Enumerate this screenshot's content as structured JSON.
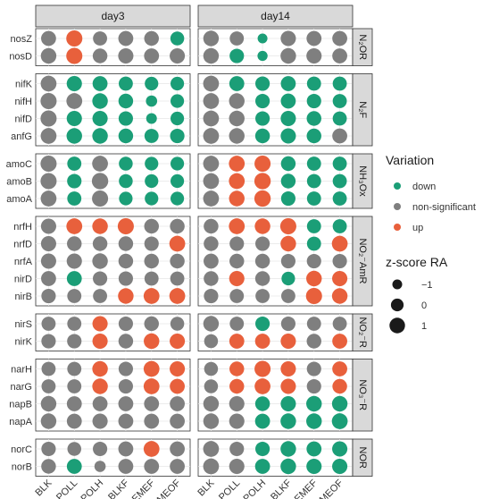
{
  "chart_data": {
    "type": "scatter",
    "panels": [
      "day3",
      "day14"
    ],
    "x_categories": [
      "BLK",
      "POLL",
      "POLH",
      "BLKF",
      "EMEF",
      "EMEOF"
    ],
    "groups": [
      {
        "label": "N₂OR",
        "genes": [
          "nosZ",
          "nosD"
        ]
      },
      {
        "label": "N₂F",
        "genes": [
          "nifK",
          "nifH",
          "nifD",
          "anfG"
        ]
      },
      {
        "label": "NH₃Ox",
        "genes": [
          "amoC",
          "amoB",
          "amoA"
        ]
      },
      {
        "label": "NO₂⁻AmR",
        "genes": [
          "nrfH",
          "nrfD",
          "nrfA",
          "nirD",
          "nirB"
        ]
      },
      {
        "label": "NO₂⁻R",
        "genes": [
          "nirS",
          "nirK"
        ]
      },
      {
        "label": "NO₃⁻R",
        "genes": [
          "narH",
          "narG",
          "napB",
          "napA"
        ]
      },
      {
        "label": "NOR",
        "genes": [
          "norC",
          "norB"
        ]
      }
    ],
    "colors": {
      "down": "#1b9e77",
      "non-significant": "#7f7f7f",
      "up": "#e8603c"
    },
    "legend_variation": {
      "title": "Variation",
      "items": [
        {
          "key": "down",
          "label": "down"
        },
        {
          "key": "non-significant",
          "label": "non-significant"
        },
        {
          "key": "up",
          "label": "up"
        }
      ]
    },
    "legend_size": {
      "title": "z-score RA",
      "items": [
        {
          "value": -1,
          "label": "−1"
        },
        {
          "value": 0,
          "label": "0"
        },
        {
          "value": 1,
          "label": "1"
        }
      ]
    },
    "values": {
      "day3": {
        "nosZ": [
          [
            0.8,
            "n"
          ],
          [
            1.2,
            "u"
          ],
          [
            0.5,
            "n"
          ],
          [
            0.8,
            "n"
          ],
          [
            0.7,
            "n"
          ],
          [
            0.4,
            "d"
          ]
        ],
        "nosD": [
          [
            1.0,
            "n"
          ],
          [
            1.2,
            "u"
          ],
          [
            0.7,
            "n"
          ],
          [
            0.9,
            "n"
          ],
          [
            0.8,
            "n"
          ],
          [
            0.9,
            "n"
          ]
        ],
        "nifK": [
          [
            1.1,
            "n"
          ],
          [
            0.9,
            "d"
          ],
          [
            0.8,
            "d"
          ],
          [
            0.5,
            "d"
          ],
          [
            0.3,
            "d"
          ],
          [
            0.3,
            "d"
          ]
        ],
        "nifH": [
          [
            1.2,
            "n"
          ],
          [
            1.1,
            "n"
          ],
          [
            1.0,
            "d"
          ],
          [
            0.7,
            "d"
          ],
          [
            -0.5,
            "d"
          ],
          [
            0.3,
            "d"
          ]
        ],
        "nifD": [
          [
            1.2,
            "n"
          ],
          [
            0.9,
            "d"
          ],
          [
            0.9,
            "d"
          ],
          [
            0.6,
            "d"
          ],
          [
            -0.7,
            "d"
          ],
          [
            0.3,
            "d"
          ]
        ],
        "anfG": [
          [
            1.1,
            "n"
          ],
          [
            1.0,
            "d"
          ],
          [
            1.0,
            "d"
          ],
          [
            0.7,
            "d"
          ],
          [
            0.5,
            "d"
          ],
          [
            0.6,
            "d"
          ]
        ],
        "amoC": [
          [
            1.2,
            "n"
          ],
          [
            0.5,
            "d"
          ],
          [
            1.1,
            "n"
          ],
          [
            0.4,
            "d"
          ],
          [
            0.3,
            "d"
          ],
          [
            0.3,
            "d"
          ]
        ],
        "amoB": [
          [
            1.2,
            "n"
          ],
          [
            0.6,
            "d"
          ],
          [
            1.3,
            "n"
          ],
          [
            0.4,
            "d"
          ],
          [
            0.3,
            "d"
          ],
          [
            0.3,
            "d"
          ]
        ],
        "amoA": [
          [
            1.1,
            "n"
          ],
          [
            0.5,
            "d"
          ],
          [
            1.2,
            "n"
          ],
          [
            0.3,
            "d"
          ],
          [
            0.3,
            "d"
          ],
          [
            0.3,
            "d"
          ]
        ],
        "nrfH": [
          [
            0.9,
            "n"
          ],
          [
            1.1,
            "u"
          ],
          [
            1.0,
            "u"
          ],
          [
            1.2,
            "u"
          ],
          [
            0.7,
            "n"
          ],
          [
            0.7,
            "n"
          ]
        ],
        "nrfD": [
          [
            0.9,
            "n"
          ],
          [
            0.7,
            "n"
          ],
          [
            0.7,
            "n"
          ],
          [
            0.7,
            "n"
          ],
          [
            0.6,
            "n"
          ],
          [
            1.1,
            "u"
          ]
        ],
        "nrfA": [
          [
            0.9,
            "n"
          ],
          [
            0.9,
            "n"
          ],
          [
            1.0,
            "n"
          ],
          [
            0.7,
            "n"
          ],
          [
            0.7,
            "n"
          ],
          [
            0.7,
            "n"
          ]
        ],
        "nirD": [
          [
            0.8,
            "n"
          ],
          [
            0.8,
            "d"
          ],
          [
            0.6,
            "n"
          ],
          [
            0.6,
            "n"
          ],
          [
            0.5,
            "n"
          ],
          [
            0.5,
            "n"
          ]
        ],
        "nirB": [
          [
            0.6,
            "n"
          ],
          [
            0.5,
            "n"
          ],
          [
            0.5,
            "n"
          ],
          [
            1.0,
            "u"
          ],
          [
            1.1,
            "u"
          ],
          [
            1.1,
            "u"
          ]
        ],
        "nirS": [
          [
            0.5,
            "n"
          ],
          [
            0.5,
            "n"
          ],
          [
            0.9,
            "u"
          ],
          [
            0.6,
            "n"
          ],
          [
            0.7,
            "n"
          ],
          [
            0.4,
            "n"
          ]
        ],
        "nirK": [
          [
            0.6,
            "n"
          ],
          [
            0.6,
            "n"
          ],
          [
            0.9,
            "u"
          ],
          [
            0.7,
            "n"
          ],
          [
            1.0,
            "u"
          ],
          [
            0.9,
            "u"
          ]
        ],
        "narH": [
          [
            0.5,
            "n"
          ],
          [
            0.5,
            "n"
          ],
          [
            1.0,
            "u"
          ],
          [
            0.6,
            "n"
          ],
          [
            1.1,
            "u"
          ],
          [
            0.9,
            "u"
          ]
        ],
        "narG": [
          [
            0.5,
            "n"
          ],
          [
            0.5,
            "n"
          ],
          [
            1.0,
            "u"
          ],
          [
            0.6,
            "n"
          ],
          [
            1.1,
            "u"
          ],
          [
            0.8,
            "u"
          ]
        ],
        "napB": [
          [
            1.0,
            "n"
          ],
          [
            0.8,
            "n"
          ],
          [
            0.8,
            "n"
          ],
          [
            0.8,
            "n"
          ],
          [
            0.8,
            "n"
          ],
          [
            0.8,
            "n"
          ]
        ],
        "napA": [
          [
            1.0,
            "n"
          ],
          [
            0.8,
            "n"
          ],
          [
            0.9,
            "n"
          ],
          [
            0.8,
            "n"
          ],
          [
            0.8,
            "n"
          ],
          [
            0.8,
            "n"
          ]
        ],
        "norC": [
          [
            0.6,
            "n"
          ],
          [
            0.4,
            "n"
          ],
          [
            0.6,
            "n"
          ],
          [
            0.8,
            "n"
          ],
          [
            1.1,
            "u"
          ],
          [
            0.8,
            "n"
          ]
        ],
        "norB": [
          [
            0.7,
            "n"
          ],
          [
            0.8,
            "d"
          ],
          [
            -0.5,
            "n"
          ],
          [
            0.8,
            "n"
          ],
          [
            0.8,
            "n"
          ],
          [
            0.8,
            "n"
          ]
        ]
      },
      "day14": {
        "nosZ": [
          [
            1.0,
            "n"
          ],
          [
            0.5,
            "n"
          ],
          [
            -1.0,
            "d"
          ],
          [
            0.9,
            "n"
          ],
          [
            0.8,
            "n"
          ],
          [
            0.8,
            "n"
          ]
        ],
        "nosD": [
          [
            1.0,
            "n"
          ],
          [
            0.6,
            "d"
          ],
          [
            -0.9,
            "d"
          ],
          [
            1.0,
            "n"
          ],
          [
            0.9,
            "n"
          ],
          [
            0.8,
            "n"
          ]
        ],
        "nifK": [
          [
            1.1,
            "n"
          ],
          [
            0.8,
            "d"
          ],
          [
            0.6,
            "d"
          ],
          [
            0.8,
            "d"
          ],
          [
            0.5,
            "d"
          ],
          [
            0.5,
            "d"
          ]
        ],
        "nifH": [
          [
            1.1,
            "n"
          ],
          [
            1.0,
            "n"
          ],
          [
            0.6,
            "d"
          ],
          [
            0.8,
            "d"
          ],
          [
            0.6,
            "d"
          ],
          [
            0.5,
            "d"
          ]
        ],
        "nifD": [
          [
            1.1,
            "n"
          ],
          [
            1.0,
            "n"
          ],
          [
            0.6,
            "d"
          ],
          [
            0.9,
            "d"
          ],
          [
            0.7,
            "d"
          ],
          [
            0.5,
            "d"
          ]
        ],
        "anfG": [
          [
            1.1,
            "n"
          ],
          [
            1.0,
            "n"
          ],
          [
            0.7,
            "d"
          ],
          [
            0.9,
            "d"
          ],
          [
            0.7,
            "d"
          ],
          [
            0.8,
            "n"
          ]
        ],
        "amoC": [
          [
            1.1,
            "n"
          ],
          [
            1.1,
            "u"
          ],
          [
            1.2,
            "u"
          ],
          [
            0.7,
            "d"
          ],
          [
            0.5,
            "d"
          ],
          [
            0.5,
            "d"
          ]
        ],
        "amoB": [
          [
            1.1,
            "n"
          ],
          [
            1.1,
            "u"
          ],
          [
            1.3,
            "u"
          ],
          [
            0.7,
            "d"
          ],
          [
            0.5,
            "d"
          ],
          [
            0.5,
            "d"
          ]
        ],
        "amoA": [
          [
            1.1,
            "n"
          ],
          [
            1.0,
            "u"
          ],
          [
            1.3,
            "u"
          ],
          [
            0.6,
            "d"
          ],
          [
            0.5,
            "d"
          ],
          [
            0.5,
            "d"
          ]
        ],
        "nrfH": [
          [
            0.7,
            "n"
          ],
          [
            1.1,
            "u"
          ],
          [
            1.0,
            "u"
          ],
          [
            1.2,
            "u"
          ],
          [
            0.5,
            "d"
          ],
          [
            0.5,
            "d"
          ]
        ],
        "nrfD": [
          [
            0.7,
            "n"
          ],
          [
            0.6,
            "n"
          ],
          [
            0.6,
            "n"
          ],
          [
            1.0,
            "u"
          ],
          [
            0.5,
            "d"
          ],
          [
            1.1,
            "u"
          ]
        ],
        "nrfA": [
          [
            0.8,
            "n"
          ],
          [
            0.7,
            "n"
          ],
          [
            0.7,
            "n"
          ],
          [
            0.6,
            "n"
          ],
          [
            0.6,
            "n"
          ],
          [
            0.6,
            "n"
          ]
        ],
        "nirD": [
          [
            0.7,
            "n"
          ],
          [
            0.9,
            "u"
          ],
          [
            0.7,
            "n"
          ],
          [
            0.3,
            "d"
          ],
          [
            1.0,
            "u"
          ],
          [
            0.9,
            "u"
          ]
        ],
        "nirB": [
          [
            0.6,
            "n"
          ],
          [
            0.5,
            "n"
          ],
          [
            0.5,
            "n"
          ],
          [
            0.5,
            "n"
          ],
          [
            1.2,
            "u"
          ],
          [
            1.0,
            "u"
          ]
        ],
        "nirS": [
          [
            1.0,
            "n"
          ],
          [
            0.5,
            "n"
          ],
          [
            0.6,
            "d"
          ],
          [
            0.6,
            "n"
          ],
          [
            0.5,
            "n"
          ],
          [
            0.5,
            "n"
          ]
        ],
        "nirK": [
          [
            0.4,
            "n"
          ],
          [
            0.8,
            "u"
          ],
          [
            0.8,
            "u"
          ],
          [
            0.9,
            "u"
          ],
          [
            0.7,
            "n"
          ],
          [
            0.8,
            "u"
          ]
        ],
        "narH": [
          [
            0.4,
            "n"
          ],
          [
            0.7,
            "u"
          ],
          [
            1.2,
            "u"
          ],
          [
            0.9,
            "u"
          ],
          [
            0.6,
            "n"
          ],
          [
            0.8,
            "u"
          ]
        ],
        "narG": [
          [
            0.4,
            "n"
          ],
          [
            0.7,
            "u"
          ],
          [
            1.1,
            "u"
          ],
          [
            0.9,
            "u"
          ],
          [
            0.6,
            "n"
          ],
          [
            0.7,
            "u"
          ]
        ],
        "napB": [
          [
            1.0,
            "n"
          ],
          [
            0.9,
            "n"
          ],
          [
            0.7,
            "d"
          ],
          [
            0.9,
            "d"
          ],
          [
            1.0,
            "d"
          ],
          [
            1.0,
            "d"
          ]
        ],
        "napA": [
          [
            1.0,
            "n"
          ],
          [
            0.9,
            "n"
          ],
          [
            0.8,
            "d"
          ],
          [
            1.0,
            "d"
          ],
          [
            1.0,
            "d"
          ],
          [
            1.1,
            "d"
          ]
        ],
        "norC": [
          [
            1.1,
            "n"
          ],
          [
            0.6,
            "n"
          ],
          [
            0.6,
            "d"
          ],
          [
            1.0,
            "d"
          ],
          [
            0.8,
            "d"
          ],
          [
            0.9,
            "d"
          ]
        ],
        "norB": [
          [
            1.1,
            "n"
          ],
          [
            0.9,
            "n"
          ],
          [
            0.8,
            "d"
          ],
          [
            1.0,
            "d"
          ],
          [
            0.9,
            "d"
          ],
          [
            0.9,
            "d"
          ]
        ]
      }
    }
  }
}
